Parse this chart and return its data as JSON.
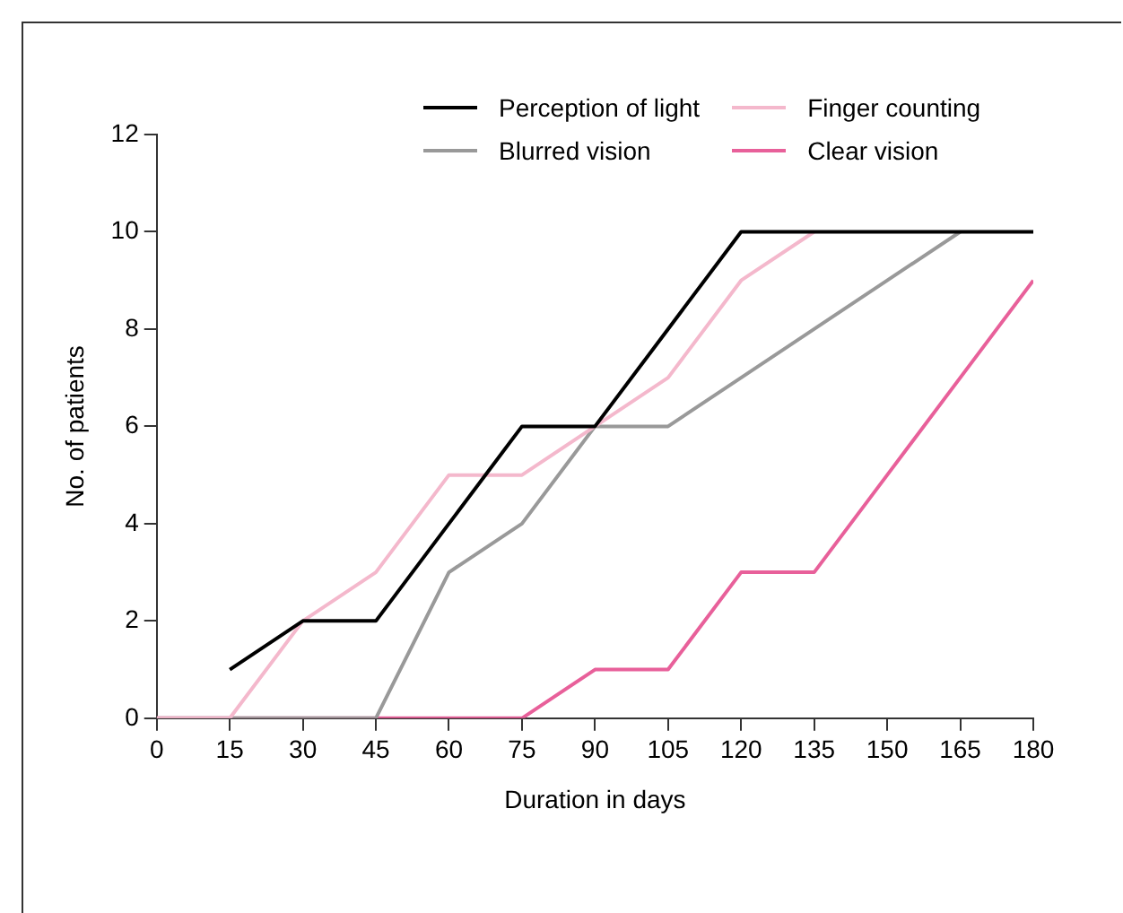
{
  "chart_data": {
    "type": "line",
    "xlabel": "Duration in days",
    "ylabel": "No. of patients",
    "x": [
      0,
      15,
      30,
      45,
      60,
      75,
      90,
      105,
      120,
      135,
      150,
      165,
      180
    ],
    "xlim": [
      0,
      180
    ],
    "xticks": [
      0,
      15,
      30,
      45,
      60,
      75,
      90,
      105,
      120,
      135,
      150,
      165,
      180
    ],
    "ylim": [
      0,
      12
    ],
    "yticks": [
      0,
      2,
      4,
      6,
      8,
      10,
      12
    ],
    "grid": false,
    "legend": "top right",
    "marker": "none",
    "line_style": "solid",
    "series": [
      {
        "name": "Perception of light",
        "color": "#000000",
        "values": [
          null,
          1,
          2,
          2,
          4,
          6,
          6,
          8,
          10,
          10,
          10,
          10,
          10
        ]
      },
      {
        "name": "Finger counting",
        "color": "#f4b8cc",
        "values": [
          0,
          0,
          2,
          3,
          5,
          5,
          6,
          7,
          9,
          10,
          null,
          null,
          null
        ]
      },
      {
        "name": "Blurred vision",
        "color": "#999999",
        "values": [
          0,
          0,
          0,
          0,
          3,
          4,
          6,
          6,
          7,
          8,
          9,
          10,
          null
        ]
      },
      {
        "name": "Clear vision",
        "color": "#e8609a",
        "values": [
          0,
          0,
          0,
          0,
          0,
          0,
          1,
          1,
          3,
          3,
          5,
          7,
          9
        ]
      }
    ]
  }
}
